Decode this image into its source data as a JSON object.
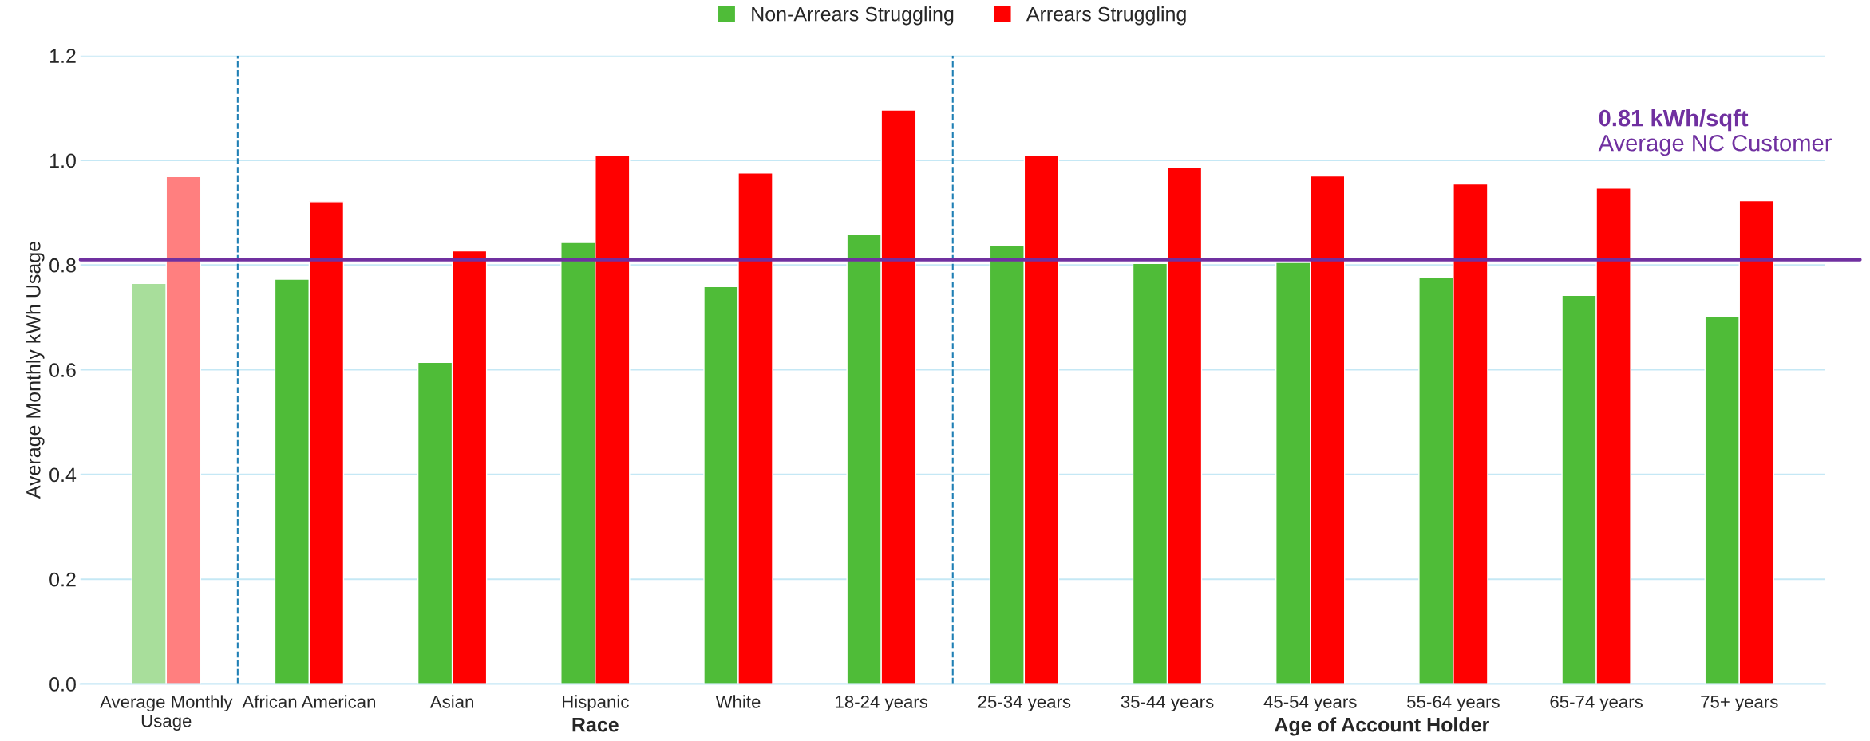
{
  "chart_data": {
    "type": "bar",
    "categories": [
      "Average Monthly\nUsage",
      "African American",
      "Asian",
      "Hispanic",
      "White",
      "18-24 years",
      "25-34 years",
      "35-44 years",
      "45-54 years",
      "55-64 years",
      "65-74 years",
      "75+ years"
    ],
    "series": [
      {
        "name": "Non-Arrears Struggling",
        "color": "#4fbc38",
        "colors": [
          "#a8de9b",
          "#4fbc38",
          "#4fbc38",
          "#4fbc38",
          "#4fbc38",
          "#4fbc38",
          "#4fbc38",
          "#4fbc38",
          "#4fbc38",
          "#4fbc38",
          "#4fbc38",
          "#4fbc38"
        ],
        "values": [
          0.765,
          0.773,
          0.614,
          0.843,
          0.759,
          0.859,
          0.838,
          0.803,
          0.805,
          0.777,
          0.742,
          0.702
        ]
      },
      {
        "name": "Arrears Struggling",
        "color": "#ff0000",
        "colors": [
          "#ff7f7f",
          "#ff0000",
          "#ff0000",
          "#ff0000",
          "#ff0000",
          "#ff0000",
          "#ff0000",
          "#ff0000",
          "#ff0000",
          "#ff0000",
          "#ff0000",
          "#ff0000"
        ],
        "values": [
          0.969,
          0.921,
          0.827,
          1.009,
          0.976,
          1.096,
          1.01,
          0.987,
          0.97,
          0.955,
          0.947,
          0.923
        ]
      }
    ],
    "ylabel": "Average Monthly kWh Usage",
    "ylim": [
      0,
      1.2
    ],
    "yticks": [
      {
        "value": 0,
        "label": "0.0"
      },
      0.2,
      0.4,
      0.6,
      0.8,
      {
        "value": 1,
        "label": "1.0"
      },
      1.2
    ],
    "grid": "y",
    "legend": "top",
    "ref_lines": [
      {
        "axis": "y",
        "value": 0.81,
        "label": "0.81 kWh/sqft\nAverage NC Customer",
        "color": "#7030a0",
        "line_style": "solid"
      }
    ],
    "annotations": [
      "Race",
      "Age of Account Holder"
    ]
  }
}
